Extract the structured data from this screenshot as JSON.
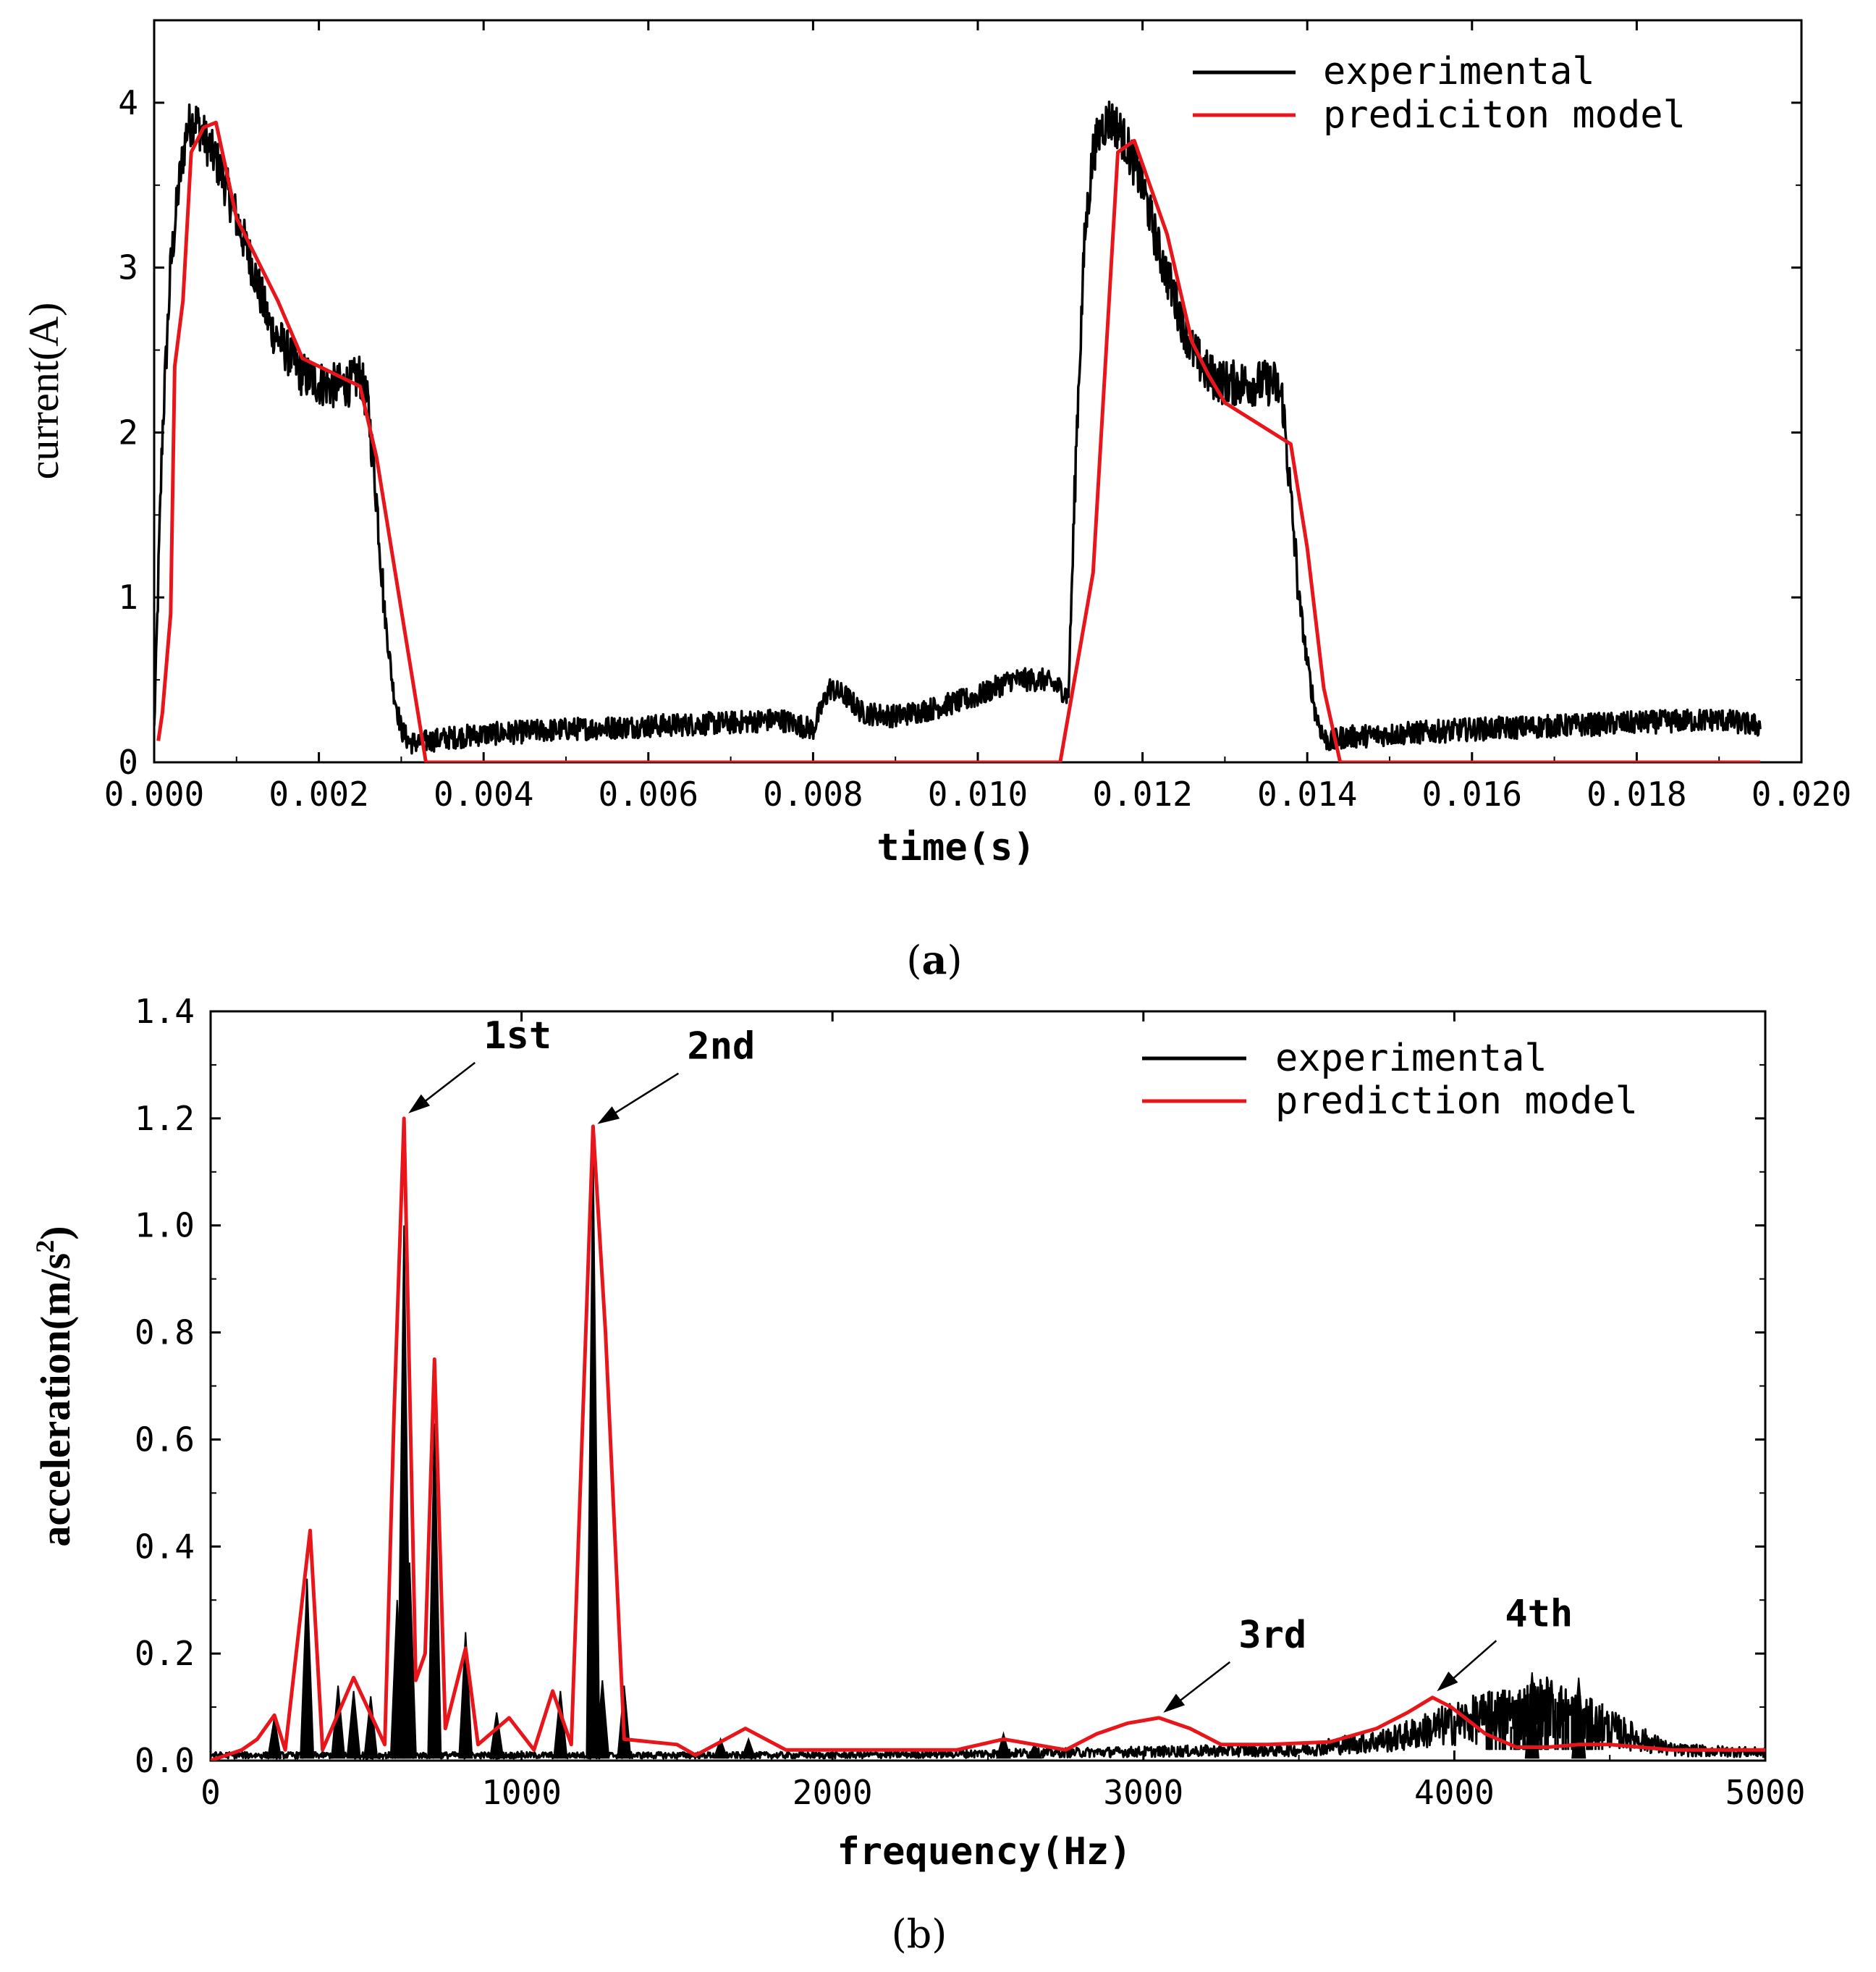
{
  "chart_data": [
    {
      "id": "a",
      "type": "line",
      "caption_open": "(",
      "caption_letter": "a",
      "caption_close": ")",
      "xlabel": "time(s)",
      "ylabel": "current(A)",
      "xlim": [
        0,
        0.02
      ],
      "ylim": [
        0,
        4.5
      ],
      "xticks": [
        0,
        0.002,
        0.004,
        0.006,
        0.008,
        0.01,
        0.012,
        0.014,
        0.016,
        0.018,
        0.02
      ],
      "xtick_labels": [
        "0.000",
        "0.002",
        "0.004",
        "0.006",
        "0.008",
        "0.010",
        "0.012",
        "0.014",
        "0.016",
        "0.018",
        "0.020"
      ],
      "yticks": [
        0,
        1,
        2,
        3,
        4
      ],
      "ytick_labels": [
        "0",
        "1",
        "2",
        "3",
        "4"
      ],
      "legend_position": "top-right",
      "series": [
        {
          "name": "experimental",
          "color": "#000000",
          "style": "noisy",
          "x": [
            0,
            0.0001,
            0.0002,
            0.0003,
            0.0004,
            0.0005,
            0.0006,
            0.0007,
            0.0008,
            0.001,
            0.0012,
            0.0014,
            0.0016,
            0.0018,
            0.002,
            0.0022,
            0.0024,
            0.0025,
            0.0026,
            0.0027,
            0.0028,
            0.0029,
            0.003,
            0.0031,
            0.0032,
            0.0036,
            0.004,
            0.005,
            0.006,
            0.007,
            0.0076,
            0.008,
            0.0082,
            0.0084,
            0.0086,
            0.009,
            0.0094,
            0.01,
            0.0104,
            0.0108,
            0.011,
            0.0111,
            0.0112,
            0.0113,
            0.0114,
            0.0115,
            0.0116,
            0.0117,
            0.0118,
            0.012,
            0.0122,
            0.0124,
            0.0126,
            0.0128,
            0.013,
            0.0132,
            0.0134,
            0.0136,
            0.0137,
            0.0138,
            0.0139,
            0.014,
            0.0141,
            0.0142,
            0.0143,
            0.0144,
            0.015,
            0.016,
            0.017,
            0.018,
            0.019,
            0.0195
          ],
          "y": [
            0.2,
            2.0,
            3.0,
            3.5,
            3.85,
            3.9,
            3.8,
            3.7,
            3.6,
            3.3,
            3.0,
            2.65,
            2.5,
            2.35,
            2.3,
            2.28,
            2.3,
            2.35,
            2.15,
            1.6,
            0.9,
            0.45,
            0.2,
            0.12,
            0.12,
            0.15,
            0.17,
            0.2,
            0.22,
            0.24,
            0.26,
            0.2,
            0.45,
            0.4,
            0.3,
            0.28,
            0.32,
            0.4,
            0.5,
            0.5,
            0.45,
            0.4,
            2.0,
            3.2,
            3.7,
            3.85,
            3.9,
            3.85,
            3.75,
            3.5,
            3.1,
            2.8,
            2.5,
            2.35,
            2.3,
            2.3,
            2.3,
            2.3,
            2.2,
            1.6,
            1.0,
            0.6,
            0.3,
            0.15,
            0.12,
            0.15,
            0.17,
            0.2,
            0.22,
            0.24,
            0.26,
            0.22
          ]
        },
        {
          "name": "prediciton model",
          "color": "#e8161b",
          "style": "line",
          "x": [
            5e-05,
            0.0001,
            0.0002,
            0.00025,
            0.00035,
            0.00045,
            0.0006,
            0.00075,
            0.001,
            0.0015,
            0.0018,
            0.0025,
            0.0027,
            0.0033,
            0.004,
            0.006,
            0.008,
            0.01,
            0.011,
            0.0114,
            0.0117,
            0.0119,
            0.0123,
            0.0126,
            0.0128,
            0.013,
            0.0138,
            0.014,
            0.0142,
            0.0144,
            0.016,
            0.018,
            0.0195
          ],
          "y": [
            0.13,
            0.3,
            0.9,
            2.4,
            2.8,
            3.7,
            3.85,
            3.88,
            3.3,
            2.8,
            2.45,
            2.28,
            1.85,
            0,
            0,
            0,
            0,
            0,
            0,
            1.15,
            3.7,
            3.77,
            3.2,
            2.55,
            2.35,
            2.18,
            1.93,
            1.3,
            0.45,
            0,
            0,
            0,
            0
          ]
        }
      ]
    },
    {
      "id": "b",
      "type": "line",
      "caption_open": "(",
      "caption_letter": "b",
      "caption_close": ")",
      "xlabel": "frequency(Hz)",
      "ylabel": "acceleration(m/s",
      "ylabel_sup": "2",
      "ylabel_end": ")",
      "xlim": [
        0,
        5000
      ],
      "ylim": [
        0,
        1.4
      ],
      "xticks": [
        0,
        1000,
        2000,
        3000,
        4000,
        5000
      ],
      "xtick_labels": [
        "0",
        "1000",
        "2000",
        "3000",
        "4000",
        "5000"
      ],
      "yticks": [
        0,
        0.2,
        0.4,
        0.6,
        0.8,
        1.0,
        1.2,
        1.4
      ],
      "ytick_labels": [
        "0.0",
        "0.2",
        "0.4",
        "0.6",
        "0.8",
        "1.0",
        "1.2",
        "1.4"
      ],
      "legend_position": "top-right",
      "annotations": [
        {
          "label": "1st",
          "x": 622,
          "y": 1.2
        },
        {
          "label": "2nd",
          "x": 1230,
          "y": 1.18
        },
        {
          "label": "3rd",
          "x": 3050,
          "y": 0.08
        },
        {
          "label": "4th",
          "x": 3930,
          "y": 0.12
        }
      ],
      "series": [
        {
          "name": "experimental",
          "color": "#000000",
          "style": "spikes",
          "peaks": [
            {
              "x": 205,
              "y": 0.08
            },
            {
              "x": 310,
              "y": 0.34
            },
            {
              "x": 410,
              "y": 0.14
            },
            {
              "x": 460,
              "y": 0.13
            },
            {
              "x": 515,
              "y": 0.12
            },
            {
              "x": 600,
              "y": 0.3
            },
            {
              "x": 622,
              "y": 1.0
            },
            {
              "x": 640,
              "y": 0.37
            },
            {
              "x": 720,
              "y": 0.63
            },
            {
              "x": 820,
              "y": 0.24
            },
            {
              "x": 920,
              "y": 0.09
            },
            {
              "x": 1125,
              "y": 0.13
            },
            {
              "x": 1230,
              "y": 1.14
            },
            {
              "x": 1260,
              "y": 0.15
            },
            {
              "x": 1330,
              "y": 0.14
            },
            {
              "x": 1640,
              "y": 0.04
            },
            {
              "x": 1730,
              "y": 0.04
            },
            {
              "x": 2550,
              "y": 0.05
            },
            {
              "x": 2650,
              "y": 0.03
            },
            {
              "x": 4250,
              "y": 0.165
            },
            {
              "x": 4400,
              "y": 0.155
            }
          ],
          "baseline": [
            {
              "x": 0,
              "y": 0.01
            },
            {
              "x": 2000,
              "y": 0.01
            },
            {
              "x": 3500,
              "y": 0.02
            },
            {
              "x": 3800,
              "y": 0.04
            },
            {
              "x": 4000,
              "y": 0.07
            },
            {
              "x": 4300,
              "y": 0.1
            },
            {
              "x": 4500,
              "y": 0.06
            },
            {
              "x": 4700,
              "y": 0.02
            },
            {
              "x": 5000,
              "y": 0.015
            }
          ]
        },
        {
          "name": "prediction model",
          "color": "#e8161b",
          "style": "line",
          "x": [
            0,
            100,
            150,
            205,
            240,
            320,
            360,
            460,
            560,
            590,
            622,
            660,
            690,
            720,
            755,
            820,
            860,
            960,
            1040,
            1100,
            1160,
            1230,
            1270,
            1330,
            1500,
            1560,
            1720,
            1850,
            2000,
            2400,
            2550,
            2750,
            2850,
            2950,
            3050,
            3150,
            3250,
            3400,
            3600,
            3750,
            3850,
            3930,
            3990,
            4100,
            4200,
            4300,
            4400,
            4500,
            4700,
            5000
          ],
          "y": [
            0,
            0.02,
            0.04,
            0.085,
            0.02,
            0.43,
            0.02,
            0.155,
            0.03,
            0.65,
            1.2,
            0.15,
            0.2,
            0.75,
            0.06,
            0.21,
            0.03,
            0.08,
            0.02,
            0.13,
            0.03,
            1.185,
            0.8,
            0.04,
            0.03,
            0.01,
            0.06,
            0.02,
            0.02,
            0.02,
            0.04,
            0.02,
            0.05,
            0.07,
            0.08,
            0.06,
            0.03,
            0.03,
            0.035,
            0.06,
            0.09,
            0.118,
            0.1,
            0.05,
            0.025,
            0.025,
            0.03,
            0.03,
            0.02,
            0.02
          ]
        }
      ]
    }
  ]
}
